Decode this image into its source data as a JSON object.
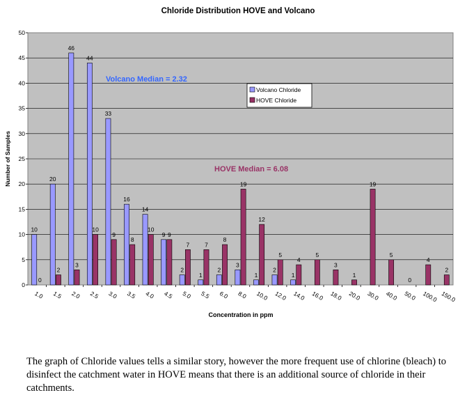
{
  "chart_data": {
    "type": "bar",
    "title": "Chloride Distribution HOVE and Volcano",
    "xlabel": "Concentration in ppm",
    "ylabel": "Number of Samples",
    "ylim": [
      0,
      50
    ],
    "yticks": [
      0,
      5,
      10,
      15,
      20,
      25,
      30,
      35,
      40,
      45,
      50
    ],
    "grid": true,
    "legend_position": "upper-right",
    "categories": [
      "1.0",
      "1.5",
      "2.0",
      "2.5",
      "3.0",
      "3.5",
      "4.0",
      "4.5",
      "5.0",
      "5.5",
      "6.0",
      "8.0",
      "10.0",
      "12.0",
      "14.0",
      "16.0",
      "18.0",
      "20.0",
      "30.0",
      "40.0",
      "50.0",
      "100.0",
      "150.0"
    ],
    "series": [
      {
        "name": "Volcano Chloride",
        "color": "#9999ff",
        "values": [
          10,
          20,
          46,
          44,
          33,
          16,
          14,
          9,
          2,
          1,
          2,
          3,
          1,
          2,
          1,
          null,
          null,
          null,
          null,
          null,
          null,
          null,
          null
        ]
      },
      {
        "name": "HOVE Chloride",
        "color": "#993366",
        "values": [
          0,
          2,
          3,
          10,
          9,
          8,
          10,
          9,
          7,
          7,
          8,
          19,
          12,
          5,
          4,
          5,
          3,
          1,
          19,
          5,
          0,
          4,
          2
        ]
      }
    ],
    "annotations": [
      {
        "text": "Volcano Median = 2.32",
        "color": "#3366ff"
      },
      {
        "text": "HOVE Median = 6.08",
        "color": "#993366"
      }
    ],
    "plot_background": "#c0c0c0"
  },
  "caption": "The graph of Chloride values tells a similar story, however the more frequent use of chlorine (bleach) to disinfect the catchment water in HOVE means that there is an additional source of chloride in their catchments."
}
